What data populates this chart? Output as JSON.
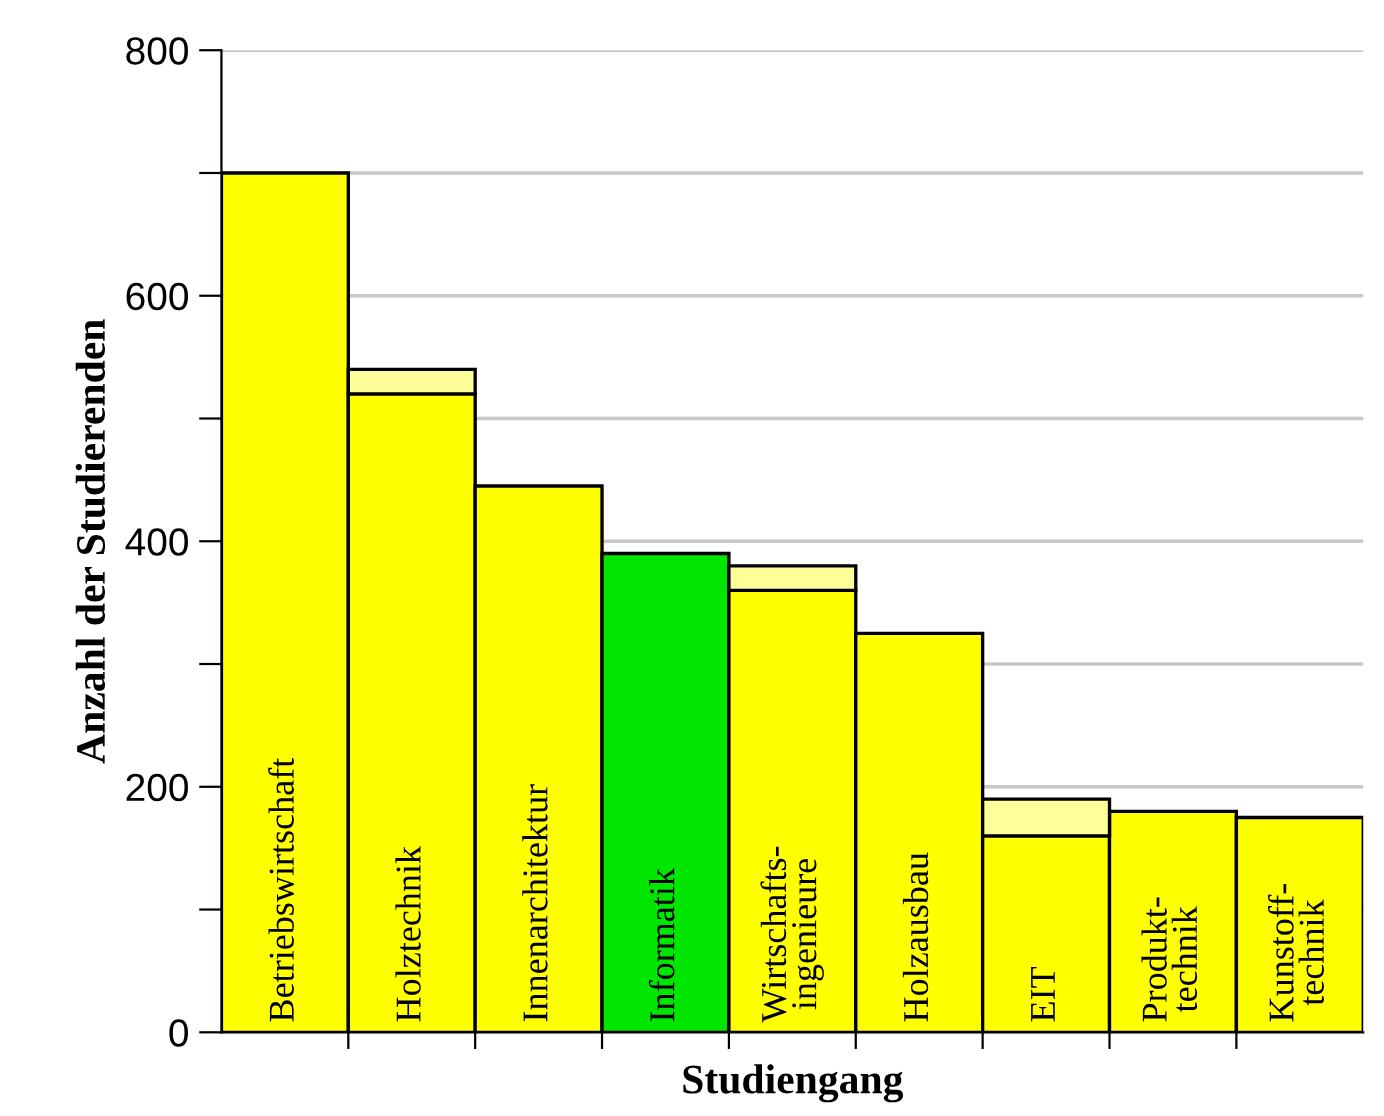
{
  "chart_data": {
    "type": "bar",
    "stacked": true,
    "xlabel": "Studiengang",
    "ylabel": "Anzahl der Studierenden",
    "categories": [
      "Betriebswirtschaft",
      "Holztechnik",
      "Innenarchitektur",
      "Informatik",
      "Wirtschafts-\ningenieure",
      "Holzausbau",
      "EIT",
      "Produkt-\ntechnik",
      "Kunstoff-\ntechnik"
    ],
    "series": [
      {
        "values": [
          700,
          520,
          445,
          390,
          360,
          325,
          160,
          180,
          175
        ],
        "colors": [
          "#ffff00",
          "#ffff00",
          "#ffff00",
          "#00e600",
          "#ffff00",
          "#ffff00",
          "#ffff00",
          "#ffff00",
          "#ffff00"
        ]
      },
      {
        "values": [
          null,
          20,
          null,
          null,
          20,
          null,
          30,
          null,
          null
        ],
        "color": "#ffff99"
      }
    ],
    "ylim": [
      0,
      800
    ],
    "yticks": [
      0,
      {
        "value": 100,
        "label": null
      },
      200,
      {
        "value": 300,
        "label": null
      },
      400,
      {
        "value": 500,
        "label": null
      },
      600,
      {
        "value": 700,
        "label": null
      },
      800
    ],
    "grid": "y"
  }
}
